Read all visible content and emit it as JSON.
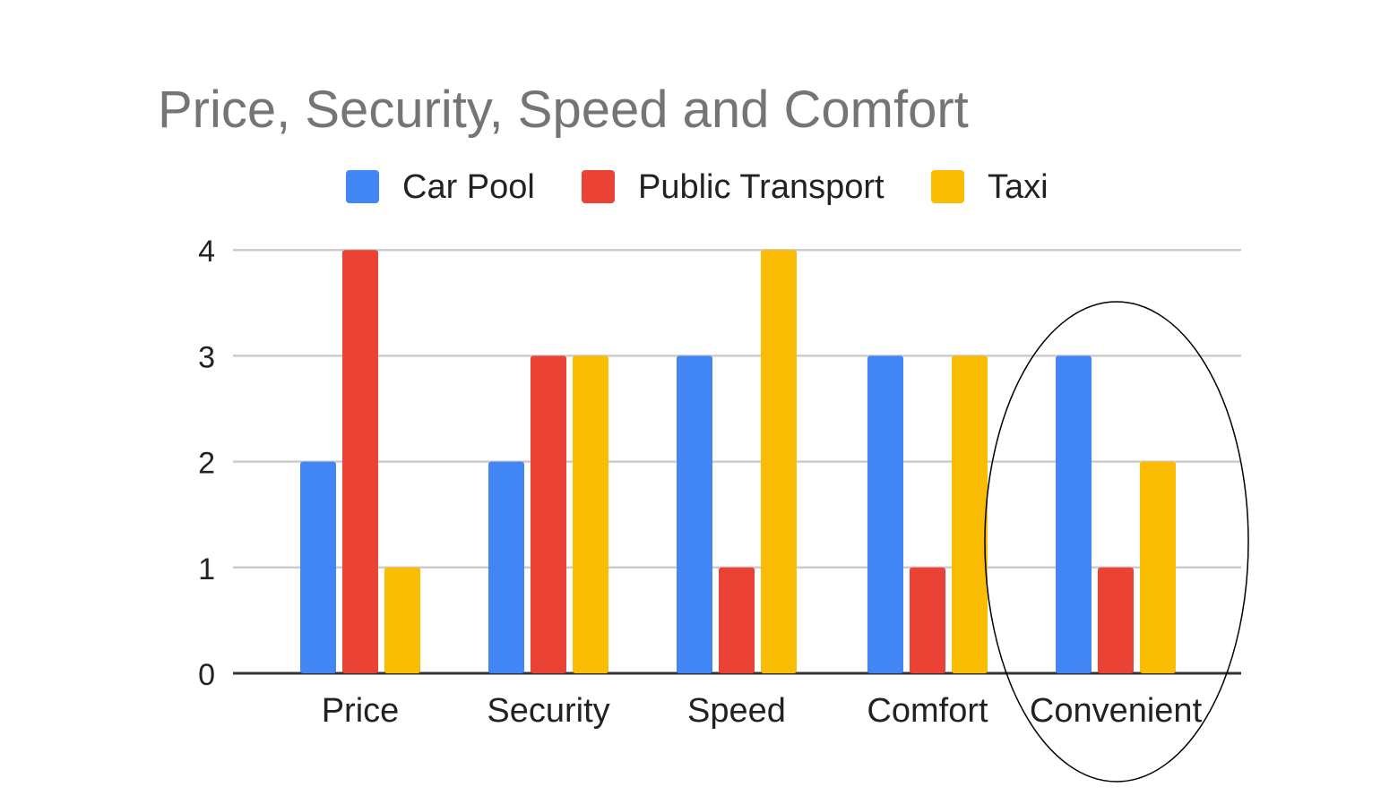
{
  "chart_data": {
    "type": "bar",
    "title": "Price, Security, Speed and Comfort",
    "categories": [
      "Price",
      "Security",
      "Speed",
      "Comfort",
      "Convenient"
    ],
    "series": [
      {
        "name": "Car Pool",
        "color": "#4285F4",
        "values": [
          2,
          2,
          3,
          3,
          3
        ]
      },
      {
        "name": "Public Transport",
        "color": "#EA4335",
        "values": [
          4,
          3,
          1,
          1,
          1
        ]
      },
      {
        "name": "Taxi",
        "color": "#FBBC04",
        "values": [
          1,
          3,
          4,
          3,
          2
        ]
      }
    ],
    "ylim": [
      0,
      4
    ],
    "yticks": [
      "0",
      "1",
      "2",
      "3",
      "4"
    ],
    "grid": true,
    "legend": "top",
    "annotation": "ellipse around Convenient"
  }
}
